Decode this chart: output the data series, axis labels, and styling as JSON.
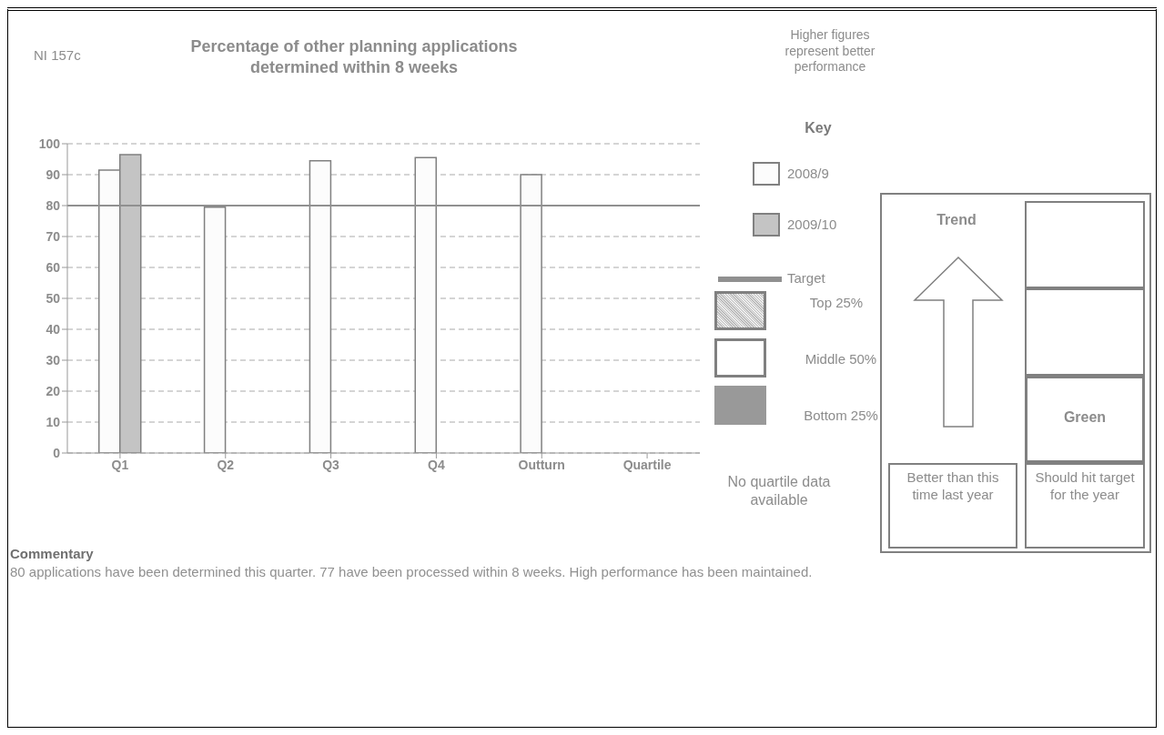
{
  "chart_data": {
    "type": "bar",
    "title": "Percentage of other planning applications determined within 8 weeks",
    "categories": [
      "Q1",
      "Q2",
      "Q3",
      "Q4",
      "Outturn",
      "Quartile"
    ],
    "series": [
      {
        "name": "2008/9",
        "color": "#fcfcfc",
        "values": [
          91.5,
          79.5,
          94.5,
          95.5,
          90,
          null
        ]
      },
      {
        "name": "2009/10",
        "color": "#c4c4c4",
        "values": [
          96.5,
          null,
          null,
          null,
          null,
          null
        ]
      }
    ],
    "ylim": [
      0,
      100
    ],
    "yticks": [
      0,
      10,
      20,
      30,
      40,
      50,
      60,
      70,
      80,
      90,
      100
    ],
    "grid": "y",
    "ref_lines": [
      {
        "axis": "y",
        "value": 80,
        "label": "Target",
        "color": "#909090"
      }
    ],
    "legend": "right",
    "legend_title": "Key",
    "annotations": [
      "NI 157c",
      "Higher figures represent better performance",
      "Top 25%",
      "Middle 50%",
      "Bottom 25%",
      "No quartile data available",
      "Trend",
      "Green",
      "Better than this time last year",
      "Should hit target for the year",
      "Commentary",
      "80 applications have been determined this quarter. 77 have been processed within 8 weeks. High performance has been maintained."
    ]
  }
}
